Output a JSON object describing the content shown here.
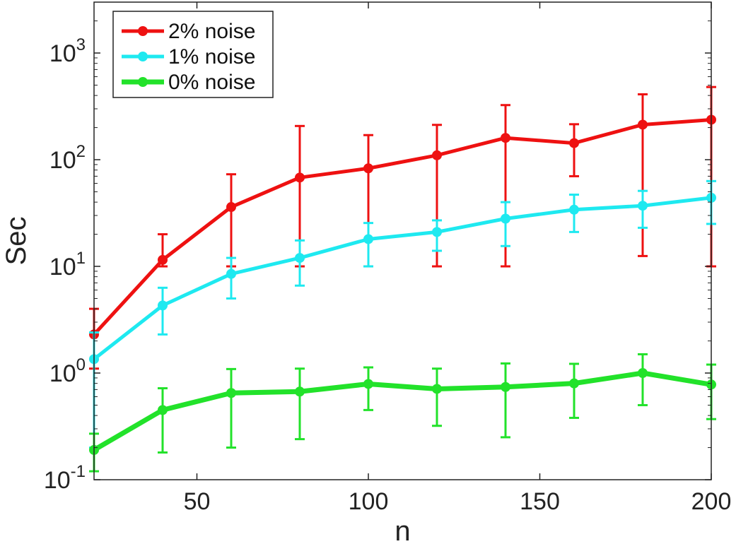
{
  "chart_data": {
    "type": "line",
    "xlabel": "n",
    "ylabel": "Sec",
    "xlim": [
      20,
      200
    ],
    "ylim": [
      0.1,
      3000
    ],
    "yscale": "log",
    "x_ticks": [
      {
        "value": 50,
        "label": "50"
      },
      {
        "value": 100,
        "label": "100"
      },
      {
        "value": 150,
        "label": "150"
      },
      {
        "value": 200,
        "label": "200"
      }
    ],
    "y_ticks": [
      {
        "value": 0.1,
        "base": "10",
        "exp": "-1"
      },
      {
        "value": 1,
        "base": "10",
        "exp": "0"
      },
      {
        "value": 10,
        "base": "10",
        "exp": "1"
      },
      {
        "value": 100,
        "base": "10",
        "exp": "2"
      },
      {
        "value": 1000,
        "base": "10",
        "exp": "3"
      }
    ],
    "legend_position": "top-left",
    "grid": false,
    "x": [
      20,
      40,
      60,
      80,
      100,
      120,
      140,
      160,
      180,
      200
    ],
    "series": [
      {
        "name": "2% noise",
        "color": "#ee1111",
        "line_weight": "medium",
        "values": [
          2.3,
          11.5,
          36,
          68,
          83,
          110,
          160,
          143,
          213,
          237
        ],
        "upper": [
          4.0,
          20,
          73,
          207,
          170,
          212,
          325,
          215,
          410,
          480
        ],
        "lower": [
          1.1,
          10,
          10,
          10,
          10,
          10,
          10,
          70,
          12.5,
          10
        ]
      },
      {
        "name": "1% noise",
        "color": "#1ee9f0",
        "line_weight": "medium",
        "values": [
          1.35,
          4.3,
          8.5,
          12,
          18,
          21,
          28,
          34,
          37,
          44
        ],
        "upper": [
          2.4,
          6.3,
          12,
          17.5,
          25.5,
          27,
          40,
          47,
          51,
          63
        ],
        "lower": [
          0.2,
          2.3,
          5.0,
          6.6,
          10,
          14,
          15.5,
          21,
          23,
          25
        ]
      },
      {
        "name": "0% noise",
        "color": "#22e22a",
        "line_weight": "heavy",
        "values": [
          0.19,
          0.45,
          0.65,
          0.67,
          0.79,
          0.71,
          0.74,
          0.8,
          1.0,
          0.78
        ],
        "upper": [
          0.27,
          0.72,
          1.09,
          1.1,
          1.13,
          1.1,
          1.23,
          1.22,
          1.5,
          1.2
        ],
        "lower": [
          0.12,
          0.18,
          0.2,
          0.24,
          0.45,
          0.32,
          0.25,
          0.38,
          0.5,
          0.37
        ]
      }
    ]
  }
}
